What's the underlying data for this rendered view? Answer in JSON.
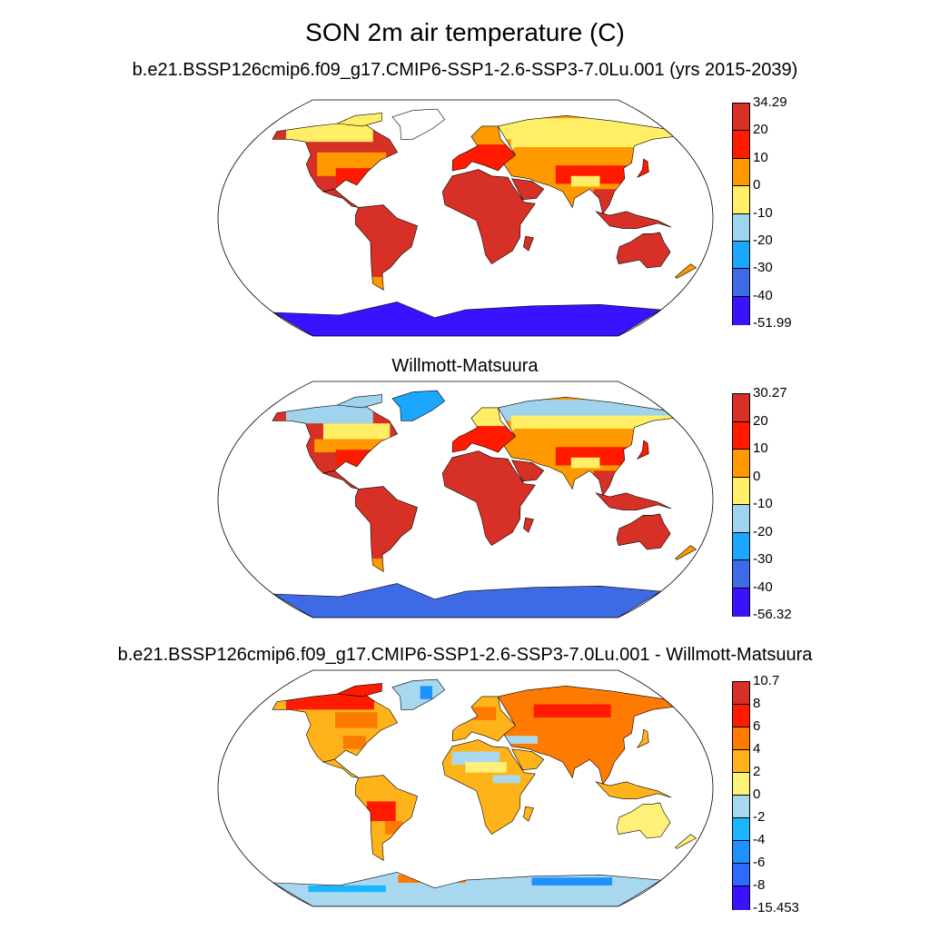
{
  "title": "SON 2m air temperature (C)",
  "panels": [
    {
      "subtitle": "b.e21.BSSP126cmip6.f09_g17.CMIP6-SSP1-2.6-SSP3-7.0Lu.001 (yrs 2015-2039)",
      "kind": "temp",
      "colorbar": {
        "labels": [
          "34.29",
          "20",
          "10",
          "0",
          "-10",
          "-20",
          "-30",
          "-40",
          "-51.99"
        ],
        "colors": [
          "#d73027",
          "#ff1a00",
          "#ff9900",
          "#ffee66",
          "#9fd3ee",
          "#1ca7ff",
          "#3f6ae6",
          "#3b12ff"
        ]
      }
    },
    {
      "subtitle": "Willmott-Matsuura",
      "kind": "temp",
      "colorbar": {
        "labels": [
          "30.27",
          "20",
          "10",
          "0",
          "-10",
          "-20",
          "-30",
          "-40",
          "-56.32"
        ],
        "colors": [
          "#d73027",
          "#ff1a00",
          "#ff9900",
          "#ffee66",
          "#9fd3ee",
          "#1ca7ff",
          "#3f6ae6",
          "#3b12ff"
        ]
      }
    },
    {
      "subtitle": "b.e21.BSSP126cmip6.f09_g17.CMIP6-SSP1-2.6-SSP3-7.0Lu.001 - Willmott-Matsuura",
      "kind": "diff",
      "colorbar": {
        "labels": [
          "10.7",
          "8",
          "6",
          "4",
          "2",
          "0",
          "-2",
          "-4",
          "-6",
          "-8",
          "-15.453"
        ],
        "colors": [
          "#d73027",
          "#ff1a00",
          "#ff7a00",
          "#ffb31a",
          "#fff07a",
          "#a8d8f0",
          "#19b6ff",
          "#1e90ff",
          "#2f6aff",
          "#3b12ff"
        ]
      }
    }
  ]
}
